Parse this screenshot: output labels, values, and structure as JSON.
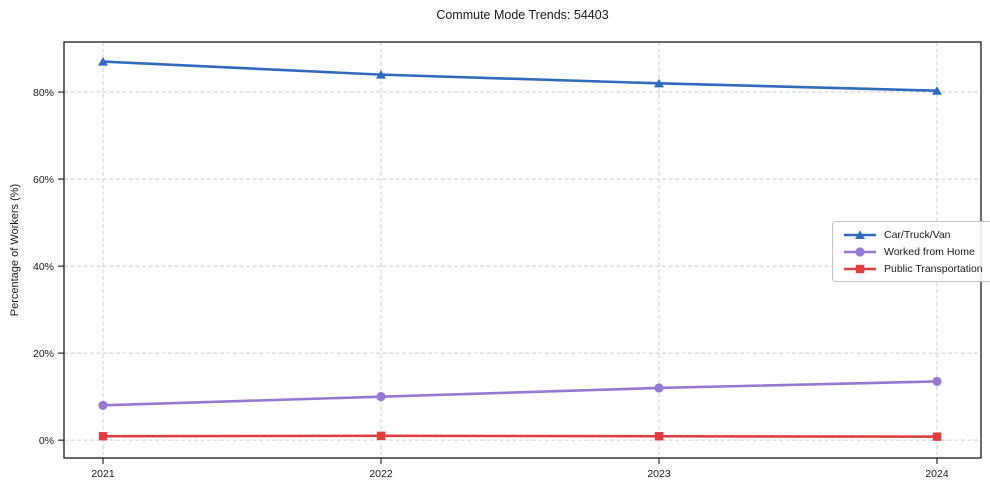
{
  "figure": {
    "background": "#ffffff",
    "spine_color": "#1a1a1a",
    "grid_color": "#cccccc",
    "text_color": "#1a1a1a"
  },
  "chart_data": {
    "type": "line",
    "title": "Commute Mode Trends: 54403",
    "xlabel": "",
    "ylabel": "Percentage of Workers (%)",
    "x": [
      2021,
      2022,
      2023,
      2024
    ],
    "x_tick_labels": [
      "2021",
      "2022",
      "2023",
      "2024"
    ],
    "y_ticks": [
      0,
      20,
      40,
      60,
      80
    ],
    "y_tick_labels": [
      "0%",
      "20%",
      "40%",
      "60%",
      "80%"
    ],
    "ylim": [
      -4.1,
      91.5
    ],
    "grid": true,
    "grid_style": "dashed",
    "legend_position": "center-right",
    "series": [
      {
        "name": "Car/Truck/Van",
        "color": "#2e6bc0",
        "marker": "triangle",
        "values": [
          87,
          84,
          82,
          80.3
        ]
      },
      {
        "name": "Worked from Home",
        "color": "#9777d4",
        "marker": "circle",
        "values": [
          8,
          10,
          12,
          13.5
        ]
      },
      {
        "name": "Public Transportation",
        "color": "#e03e3e",
        "marker": "square",
        "values": [
          0.9,
          1.0,
          0.9,
          0.8
        ]
      }
    ]
  }
}
